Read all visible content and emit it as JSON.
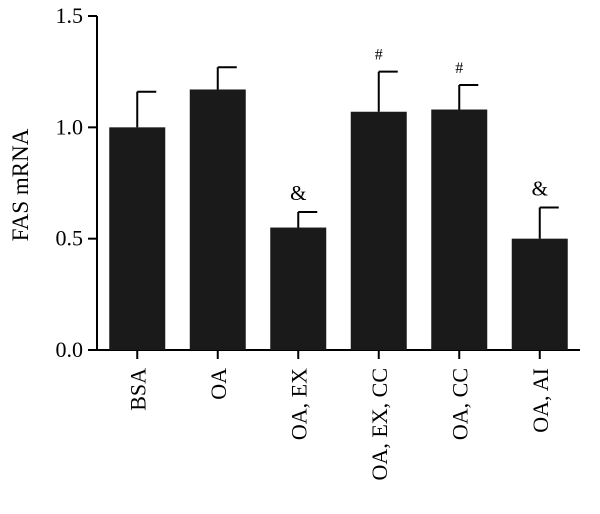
{
  "chart_data": {
    "type": "bar",
    "title": "",
    "xlabel": "",
    "ylabel": "FAS mRNA",
    "ylim": [
      0,
      1.5
    ],
    "yticks": [
      "0.0",
      "0.5",
      "1.0",
      "1.5"
    ],
    "grid": false,
    "bar_color": "#1a1a1a",
    "categories": [
      "BSA",
      "OA",
      "OA, EX",
      "OA, EX, CC",
      "OA, CC",
      "OA, AI"
    ],
    "values": [
      1.0,
      1.17,
      0.55,
      1.07,
      1.08,
      0.5
    ],
    "errors": [
      0.16,
      0.1,
      0.07,
      0.18,
      0.11,
      0.14
    ],
    "annotations": [
      "",
      "",
      "&",
      "#",
      "#",
      "&"
    ]
  }
}
